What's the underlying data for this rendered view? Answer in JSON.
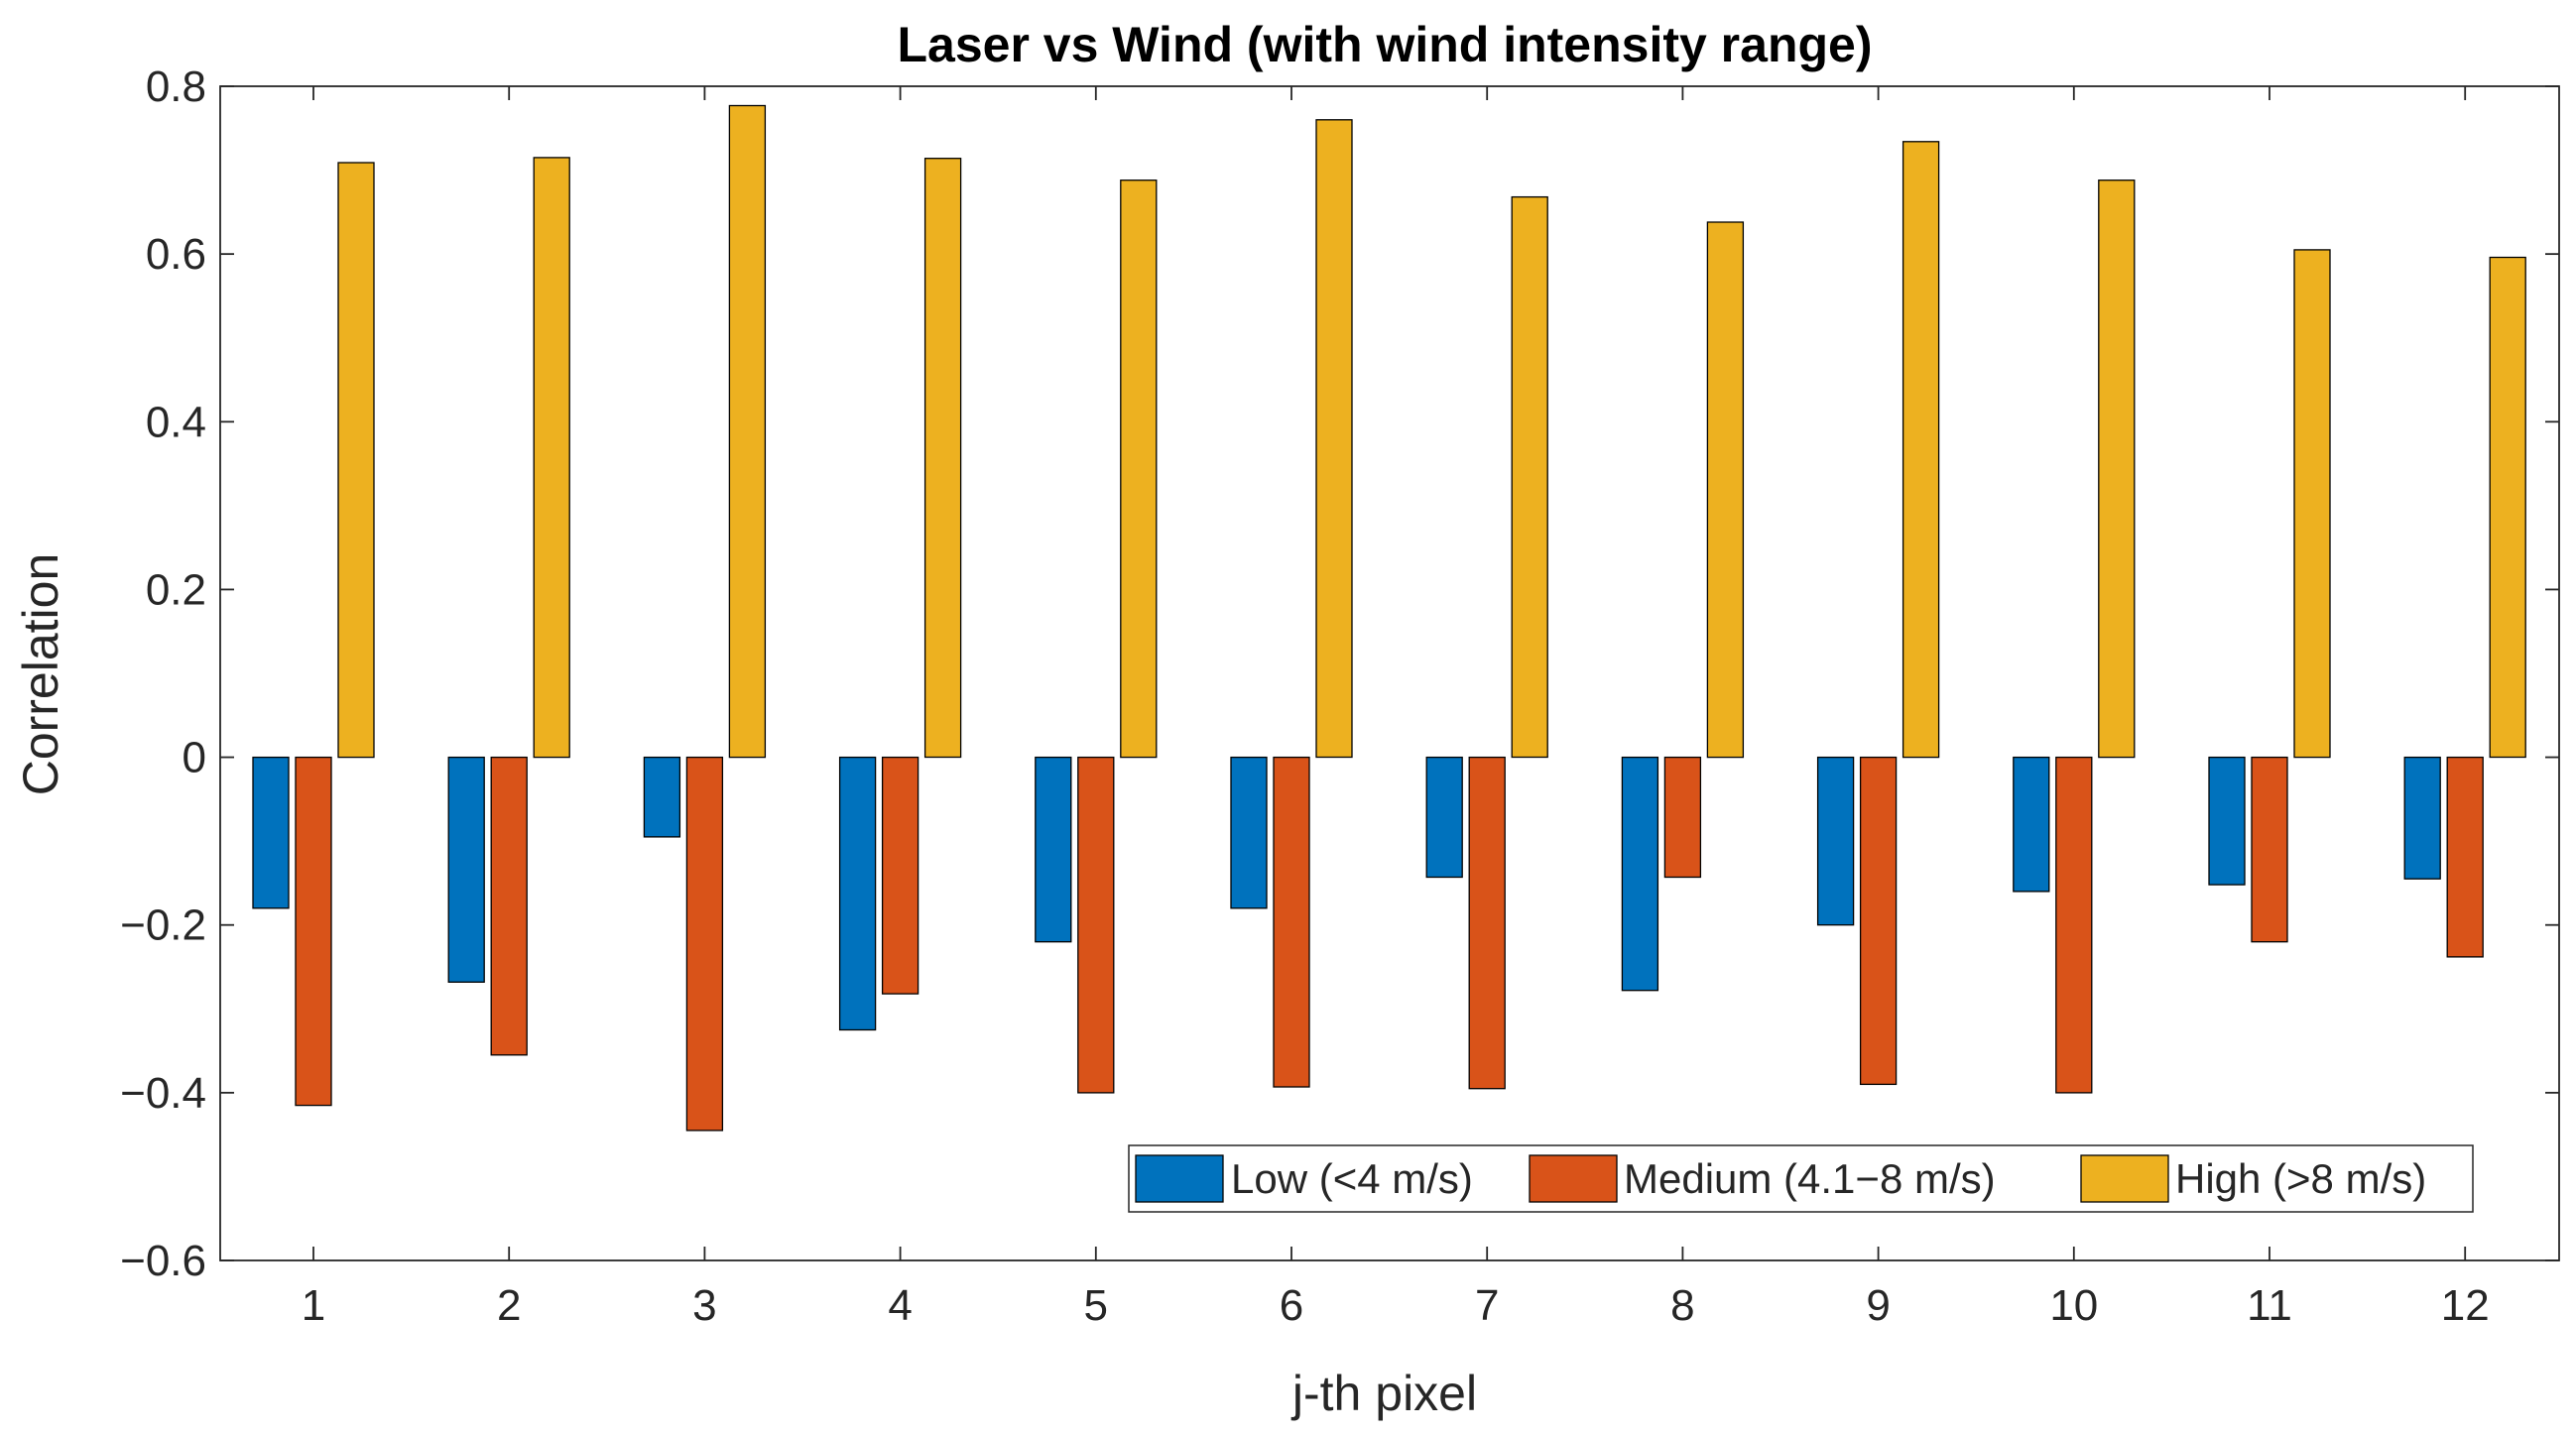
{
  "chart_data": {
    "type": "bar",
    "title": "Laser vs Wind (with wind intensity range)",
    "xlabel": "j-th pixel",
    "ylabel": "Correlation",
    "ylim": [
      -0.6,
      0.8
    ],
    "yticks": [
      -0.6,
      -0.4,
      -0.2,
      0,
      0.2,
      0.4,
      0.6,
      0.8
    ],
    "ytick_labels": [
      "−0.6",
      "−0.4",
      "−0.2",
      "0",
      "0.2",
      "0.4",
      "0.6",
      "0.8"
    ],
    "categories": [
      "1",
      "2",
      "3",
      "4",
      "5",
      "6",
      "7",
      "8",
      "9",
      "10",
      "11",
      "12"
    ],
    "series": [
      {
        "name": "Low (<4 m/s)",
        "color": "#0072BD",
        "values": [
          -0.18,
          -0.268,
          -0.095,
          -0.325,
          -0.22,
          -0.18,
          -0.143,
          -0.278,
          -0.2,
          -0.16,
          -0.152,
          -0.145
        ]
      },
      {
        "name": "Medium (4.1−8 m/s)",
        "color": "#D95319",
        "values": [
          -0.415,
          -0.355,
          -0.445,
          -0.282,
          -0.4,
          -0.393,
          -0.395,
          -0.143,
          -0.39,
          -0.4,
          -0.22,
          -0.238
        ]
      },
      {
        "name": "High (>8 m/s)",
        "color": "#EDB120",
        "values": [
          0.709,
          0.715,
          0.777,
          0.714,
          0.688,
          0.76,
          0.668,
          0.638,
          0.734,
          0.688,
          0.605,
          0.596
        ]
      }
    ],
    "legend_location": "bottom-right",
    "grid": false
  }
}
